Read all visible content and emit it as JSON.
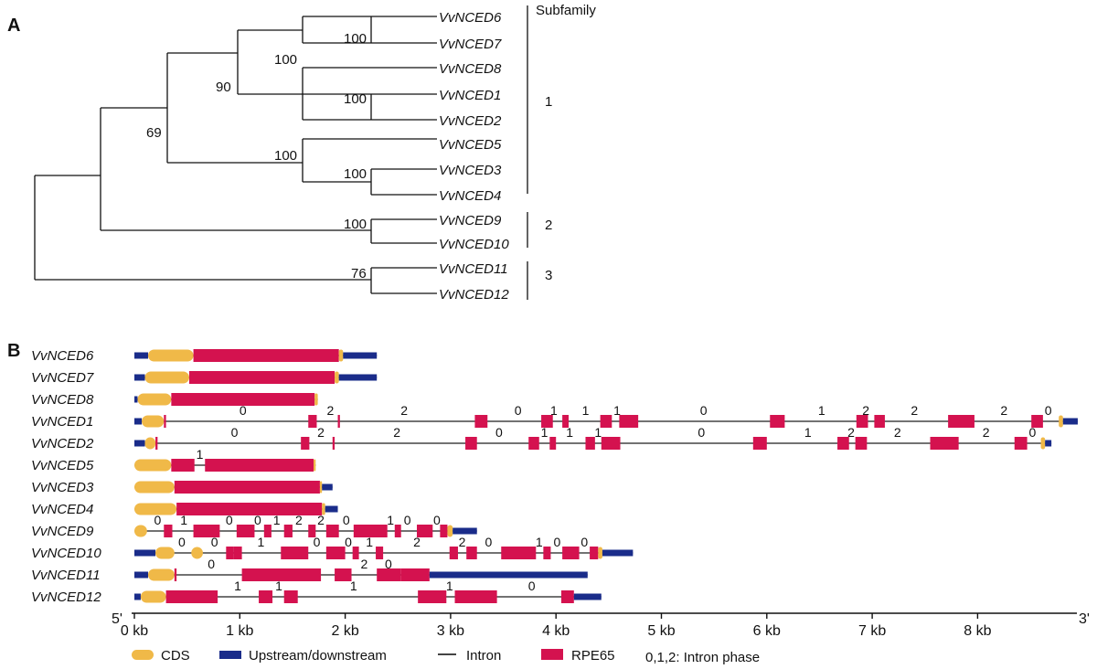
{
  "panel_a": {
    "letter": "A",
    "subfamily_header": "Subfamily",
    "taxa": [
      "VvNCED6",
      "VvNCED7",
      "VvNCED8",
      "VvNCED1",
      "VvNCED2",
      "VvNCED5",
      "VvNCED3",
      "VvNCED4",
      "VvNCED9",
      "VvNCED10",
      "VvNCED11",
      "VvNCED12"
    ],
    "bootstrap": {
      "n67": "100",
      "n678": "100",
      "n12": "100",
      "n34": "100",
      "n534": "100",
      "n_big": "90",
      "n_all": "69",
      "n910": "100",
      "n1112": "76"
    },
    "subfamilies": [
      {
        "label": "1",
        "members": "VvNCED6-VvNCED4"
      },
      {
        "label": "2",
        "members": "VvNCED9-VvNCED10"
      },
      {
        "label": "3",
        "members": "VvNCED11-VvNCED12"
      }
    ]
  },
  "panel_b": {
    "letter": "B",
    "five_prime": "5'",
    "three_prime": "3'",
    "axis_ticks": [
      "0 kb",
      "1 kb",
      "2 kb",
      "3 kb",
      "4 kb",
      "5 kb",
      "6 kb",
      "7 kb",
      "8 kb"
    ],
    "colors": {
      "cds": "#f0b948",
      "utr": "#1a2c8a",
      "rpe65": "#d4124f",
      "intron": "#444444"
    },
    "genes": [
      {
        "name": "VvNCED6",
        "phases": []
      },
      {
        "name": "VvNCED7",
        "phases": []
      },
      {
        "name": "VvNCED8",
        "phases": []
      },
      {
        "name": "VvNCED1",
        "phases": [
          "0",
          "2",
          "2",
          "0",
          "1",
          "1",
          "1",
          "0",
          "1",
          "2",
          "2",
          "2",
          "0"
        ]
      },
      {
        "name": "VvNCED2",
        "phases": [
          "0",
          "2",
          "2",
          "0",
          "1",
          "1",
          "1",
          "0",
          "1",
          "2",
          "2",
          "2",
          "0"
        ]
      },
      {
        "name": "VvNCED5",
        "phases": [
          "1"
        ]
      },
      {
        "name": "VvNCED3",
        "phases": []
      },
      {
        "name": "VvNCED4",
        "phases": []
      },
      {
        "name": "VvNCED9",
        "phases": [
          "0",
          "1",
          "0",
          "0",
          "1",
          "2",
          "2",
          "0",
          "1",
          "0",
          "0"
        ]
      },
      {
        "name": "VvNCED10",
        "phases": [
          "0",
          "0",
          "1",
          "0",
          "0",
          "1",
          "2",
          "2",
          "0",
          "1",
          "0",
          "0"
        ]
      },
      {
        "name": "VvNCED11",
        "phases": [
          "0",
          "2",
          "0"
        ]
      },
      {
        "name": "VvNCED12",
        "phases": [
          "1",
          "1",
          "1",
          "1",
          "0"
        ]
      }
    ],
    "legend": {
      "cds": "CDS",
      "utr": "Upstream/downstream",
      "intron": "Intron",
      "rpe65": "RPE65",
      "phase_note": "0,1,2: Intron phase"
    }
  }
}
